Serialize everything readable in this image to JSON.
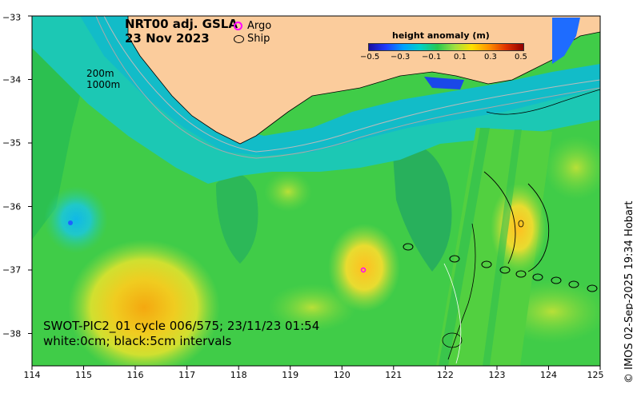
{
  "title": {
    "line1": "NRT00 adj. GSLA",
    "line2": "23 Nov 2023"
  },
  "legend": {
    "argo": "Argo",
    "ship": "Ship"
  },
  "colorbar": {
    "title": "height anomaly (m)",
    "ticks": [
      "−0.5",
      "−0.3",
      "−0.1",
      "0.1",
      "0.3",
      "0.5"
    ]
  },
  "contour_labels": {
    "shelf1": "200m",
    "shelf2": "1000m"
  },
  "swot": {
    "line1": "SWOT-PIC2_01 cycle 006/575; 23/11/23 01:54",
    "line2": "white:0cm; black:5cm intervals"
  },
  "axes": {
    "x_ticks": [
      "114",
      "115",
      "116",
      "117",
      "118",
      "119",
      "120",
      "121",
      "122",
      "123",
      "124",
      "125"
    ],
    "y_ticks": [
      "−33",
      "−34",
      "−35",
      "−36",
      "−37",
      "−38"
    ]
  },
  "credit": "© IMOS 02-Sep-2025 19:34 Hobart",
  "colors": {
    "land": "#fbcc9c",
    "base_sea": "#3ccf4a",
    "shelf": "#18c8b0"
  }
}
